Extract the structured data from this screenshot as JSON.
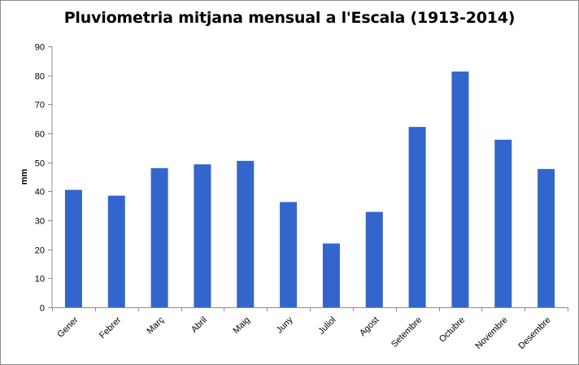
{
  "chart_data": {
    "type": "bar",
    "title": "Pluviometria mitjana mensual a l'Escala (1913-2014)",
    "xlabel": "",
    "ylabel": "mm",
    "categories": [
      "Gener",
      "Febrer",
      "Març",
      "Abril",
      "Maig",
      "Juny",
      "Juliol",
      "Agost",
      "Setembre",
      "Octubre",
      "Novembre",
      "Desembre"
    ],
    "values": [
      40.5,
      38.5,
      48.0,
      49.3,
      50.5,
      36.3,
      22.0,
      32.9,
      62.2,
      81.3,
      57.8,
      47.7
    ],
    "ylim": [
      0,
      90
    ],
    "yticks": [
      0,
      10,
      20,
      30,
      40,
      50,
      60,
      70,
      80,
      90
    ],
    "grid": false,
    "legend": "none",
    "bar_color": "#3366cc"
  }
}
